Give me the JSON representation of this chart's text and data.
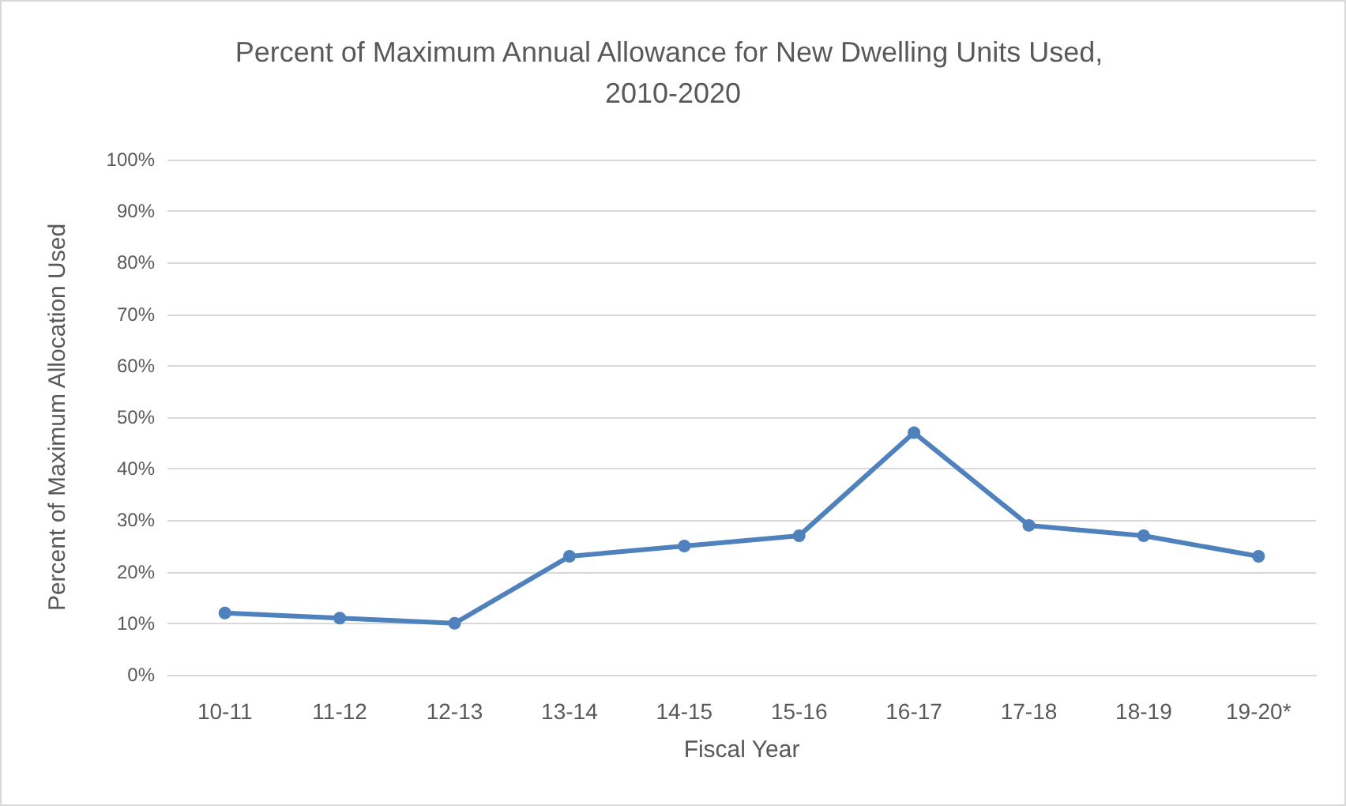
{
  "chart_data": {
    "type": "line",
    "title": "Percent of Maximum Annual Allowance for New Dwelling Units Used, 2010-2020",
    "xlabel": "Fiscal Year",
    "ylabel": "Percent of Maximum Allocation Used",
    "categories": [
      "10-11",
      "11-12",
      "12-13",
      "13-14",
      "14-15",
      "15-16",
      "16-17",
      "17-18",
      "18-19",
      "19-20*"
    ],
    "series": [
      {
        "color": "#4f81bd",
        "values": [
          12,
          11,
          10,
          23,
          25,
          27,
          47,
          29,
          27,
          23
        ]
      }
    ],
    "ylim": [
      0,
      100
    ],
    "yticks": [
      {
        "value": 0,
        "label": "0%"
      },
      {
        "value": 10,
        "label": "10%"
      },
      {
        "value": 20,
        "label": "20%"
      },
      {
        "value": 30,
        "label": "30%"
      },
      {
        "value": 40,
        "label": "40%"
      },
      {
        "value": 50,
        "label": "50%"
      },
      {
        "value": 60,
        "label": "60%"
      },
      {
        "value": 70,
        "label": "70%"
      },
      {
        "value": 80,
        "label": "80%"
      },
      {
        "value": 90,
        "label": "90%"
      },
      {
        "value": 100,
        "label": "100%"
      }
    ],
    "grid": "y",
    "marker": "circle",
    "line_style": "solid"
  }
}
